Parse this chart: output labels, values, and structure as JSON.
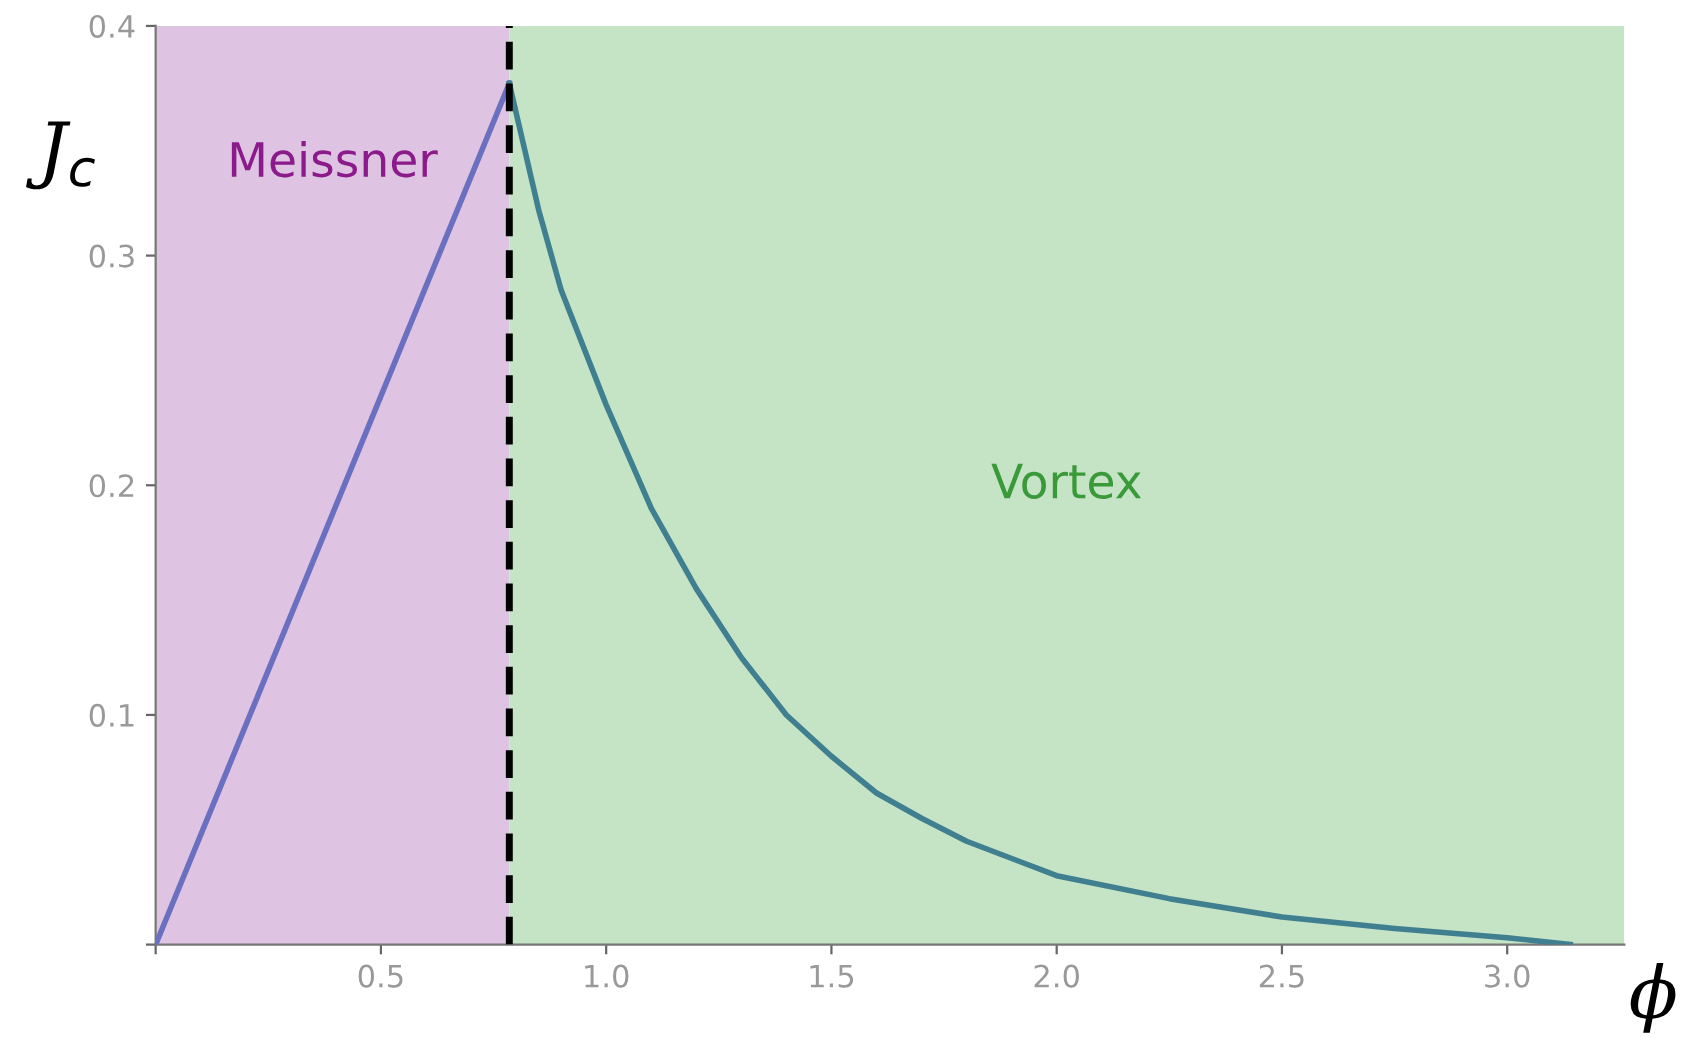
{
  "chart_data": {
    "type": "line",
    "xlabel": "ϕ",
    "ylabel": "J$_{c}$",
    "xlim": [
      0,
      3.26
    ],
    "ylim": [
      0,
      0.4
    ],
    "xticks": [
      {
        "value": 0,
        "label": null
      },
      0.5,
      {
        "value": 1,
        "label": "1.0"
      },
      1.5,
      {
        "value": 2,
        "label": "2.0"
      },
      2.5,
      {
        "value": 3,
        "label": "3.0"
      }
    ],
    "yticks": [
      {
        "value": 0,
        "label": null
      },
      0.1,
      0.2,
      0.3,
      0.4
    ],
    "grid": false,
    "marker": "none",
    "line_style": "solid",
    "series": [
      {
        "color": "#6a6fc0",
        "x": [
          0,
          0.785
        ],
        "values": [
          0,
          0.375
        ]
      },
      {
        "color": "#3f7f8f",
        "x": [
          0.785,
          0.85,
          0.9,
          1.0,
          1.1,
          1.2,
          1.3,
          1.4,
          1.5,
          1.6,
          1.7,
          1.8,
          2.0,
          2.25,
          2.5,
          2.75,
          3.0,
          3.14
        ],
        "values": [
          0.375,
          0.32,
          0.285,
          0.235,
          0.19,
          0.155,
          0.125,
          0.1,
          0.082,
          0.066,
          0.055,
          0.045,
          0.03,
          0.02,
          0.012,
          0.007,
          0.003,
          0.0
        ]
      }
    ],
    "bands": [
      {
        "axis": "x",
        "from": 0,
        "to": 0.785,
        "label": "Meissner",
        "color": "#dfc3e3"
      },
      {
        "axis": "x",
        "from": 0.785,
        "to": 3.26,
        "label": "Vortex",
        "color": "#c5e3c5"
      }
    ],
    "ref_lines": [
      {
        "axis": "x",
        "value": 0.785,
        "color": "#000000",
        "line_style": "dashed"
      }
    ]
  }
}
